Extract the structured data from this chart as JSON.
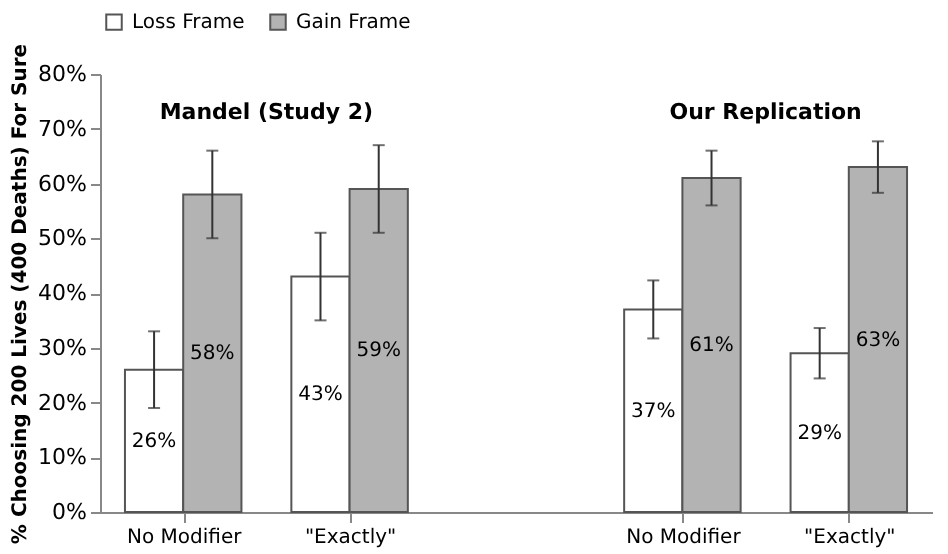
{
  "chart_data": {
    "type": "bar",
    "ylabel": "% Choosing 200 Lives (400 Deaths) For Sure",
    "categories": [
      "No Modifier",
      "\"Exactly\"",
      null,
      "No Modifier",
      "\"Exactly\""
    ],
    "series": [
      {
        "name": "Loss Frame",
        "color": "#ffffff",
        "values": [
          26,
          43,
          null,
          37,
          29
        ],
        "value_labels": [
          "26%",
          "43%",
          null,
          "37%",
          "29%"
        ],
        "errors": [
          7,
          8,
          null,
          5.3,
          4.6
        ]
      },
      {
        "name": "Gain Frame",
        "color": "#b3b3b3",
        "values": [
          58,
          59,
          null,
          61,
          63
        ],
        "value_labels": [
          "58%",
          "59%",
          null,
          "61%",
          "63%"
        ],
        "errors": [
          8,
          8,
          null,
          5,
          4.7
        ]
      }
    ],
    "ylim": [
      0,
      80
    ],
    "yticks": [
      {
        "value": 0,
        "label": "0%"
      },
      {
        "value": 10,
        "label": "10%"
      },
      {
        "value": 20,
        "label": "20%"
      },
      {
        "value": 30,
        "label": "30%"
      },
      {
        "value": 40,
        "label": "40%"
      },
      {
        "value": 50,
        "label": "50%"
      },
      {
        "value": 60,
        "label": "60%"
      },
      {
        "value": 70,
        "label": "70%"
      },
      {
        "value": 80,
        "label": "80%"
      }
    ],
    "annotations": [
      "Mandel (Study 2)",
      "Our Replication"
    ],
    "grid": false,
    "legend": "top"
  }
}
